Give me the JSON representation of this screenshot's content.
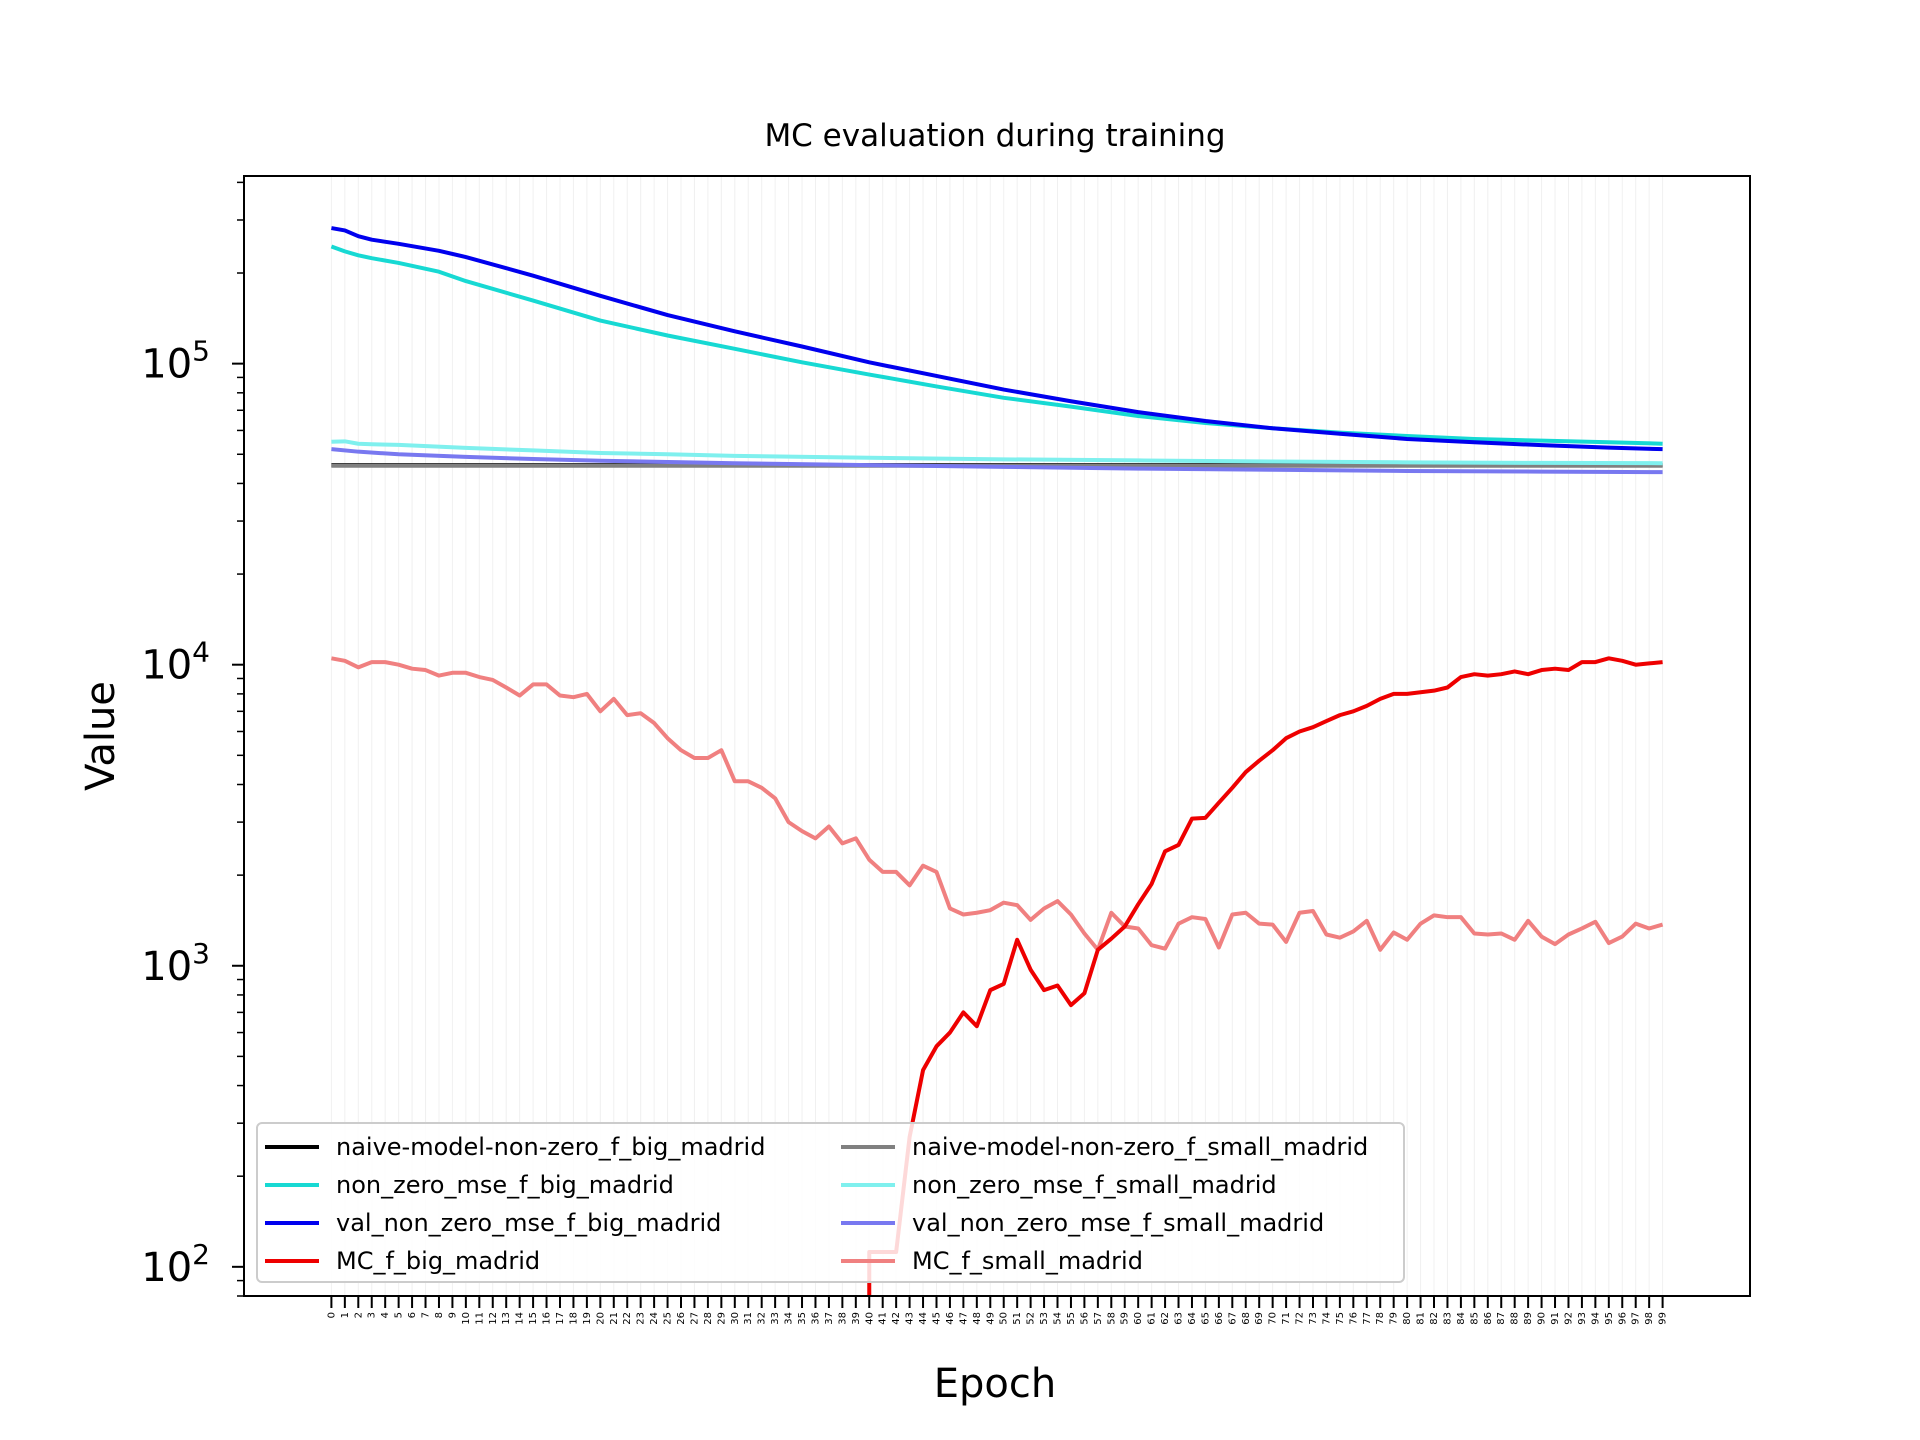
{
  "chart_data": {
    "type": "line",
    "title": "MC evaluation during training",
    "xlabel": "Epoch",
    "ylabel": "Value",
    "yscale": "log",
    "xlim": [
      -6.5,
      105.5
    ],
    "ylim": [
      80,
      420000
    ],
    "yticks": [
      {
        "value": 100,
        "base": "10",
        "exp": "2"
      },
      {
        "value": 1000,
        "base": "10",
        "exp": "3"
      },
      {
        "value": 10000,
        "base": "10",
        "exp": "4"
      },
      {
        "value": 100000,
        "base": "10",
        "exp": "5"
      }
    ],
    "x": [
      0,
      1,
      2,
      3,
      4,
      5,
      6,
      7,
      8,
      9,
      10,
      11,
      12,
      13,
      14,
      15,
      16,
      17,
      18,
      19,
      20,
      21,
      22,
      23,
      24,
      25,
      26,
      27,
      28,
      29,
      30,
      31,
      32,
      33,
      34,
      35,
      36,
      37,
      38,
      39,
      40,
      41,
      42,
      43,
      44,
      45,
      46,
      47,
      48,
      49,
      50,
      51,
      52,
      53,
      54,
      55,
      56,
      57,
      58,
      59,
      60,
      61,
      62,
      63,
      64,
      65,
      66,
      67,
      68,
      69,
      70,
      71,
      72,
      73,
      74,
      75,
      76,
      77,
      78,
      79,
      80,
      81,
      82,
      83,
      84,
      85,
      86,
      87,
      88,
      89,
      90,
      91,
      92,
      93,
      94,
      95,
      96,
      97,
      98,
      99
    ],
    "x_tick_labels": [
      "0",
      "1",
      "2",
      "3",
      "4",
      "5",
      "6",
      "7",
      "8",
      "9",
      "10",
      "11",
      "12",
      "13",
      "14",
      "15",
      "16",
      "17",
      "18",
      "19",
      "20",
      "21",
      "22",
      "23",
      "24",
      "25",
      "26",
      "27",
      "28",
      "29",
      "30",
      "31",
      "32",
      "33",
      "34",
      "35",
      "36",
      "37",
      "38",
      "39",
      "40",
      "41",
      "42",
      "43",
      "44",
      "45",
      "46",
      "47",
      "48",
      "49",
      "50",
      "51",
      "52",
      "53",
      "54",
      "55",
      "56",
      "57",
      "58",
      "59",
      "60",
      "61",
      "62",
      "63",
      "64",
      "65",
      "66",
      "67",
      "68",
      "69",
      "70",
      "71",
      "72",
      "73",
      "74",
      "75",
      "76",
      "77",
      "78",
      "79",
      "80",
      "81",
      "82",
      "83",
      "84",
      "85",
      "86",
      "87",
      "88",
      "89",
      "90",
      "91",
      "92",
      "93",
      "94",
      "95",
      "96",
      "97",
      "98",
      "99"
    ],
    "grid": "vertical",
    "legend_placement": "lower-left",
    "legend_columns": 2,
    "series": [
      {
        "name": "naive-model-non-zero_f_big_madrid",
        "color": "#000000",
        "width": 4,
        "interp": "linear",
        "points": [
          [
            0,
            46000
          ],
          [
            99,
            46000
          ]
        ]
      },
      {
        "name": "non_zero_mse_f_big_madrid",
        "color": "#17d9d3",
        "width": 4,
        "interp": "linear",
        "points": [
          [
            0,
            245000
          ],
          [
            1,
            236000
          ],
          [
            2,
            229000
          ],
          [
            3,
            224000
          ],
          [
            5,
            216000
          ],
          [
            8,
            202000
          ],
          [
            10,
            188000
          ],
          [
            15,
            162000
          ],
          [
            20,
            139000
          ],
          [
            25,
            124000
          ],
          [
            30,
            112000
          ],
          [
            35,
            101000
          ],
          [
            40,
            92000
          ],
          [
            45,
            84000
          ],
          [
            50,
            77000
          ],
          [
            55,
            72000
          ],
          [
            60,
            67000
          ],
          [
            65,
            63500
          ],
          [
            70,
            61000
          ],
          [
            75,
            59000
          ],
          [
            80,
            57500
          ],
          [
            85,
            56200
          ],
          [
            90,
            55500
          ],
          [
            95,
            54800
          ],
          [
            99,
            54200
          ]
        ]
      },
      {
        "name": "val_non_zero_mse_f_big_madrid",
        "color": "#0000ee",
        "width": 4,
        "interp": "linear",
        "points": [
          [
            0,
            282000
          ],
          [
            1,
            277000
          ],
          [
            2,
            265000
          ],
          [
            3,
            258000
          ],
          [
            5,
            250000
          ],
          [
            8,
            237000
          ],
          [
            10,
            226000
          ],
          [
            15,
            196000
          ],
          [
            20,
            168000
          ],
          [
            25,
            145000
          ],
          [
            30,
            128000
          ],
          [
            35,
            114000
          ],
          [
            40,
            101000
          ],
          [
            45,
            91000
          ],
          [
            50,
            82000
          ],
          [
            55,
            75000
          ],
          [
            60,
            69000
          ],
          [
            65,
            64500
          ],
          [
            70,
            61000
          ],
          [
            75,
            58500
          ],
          [
            80,
            56200
          ],
          [
            85,
            54800
          ],
          [
            90,
            53600
          ],
          [
            95,
            52600
          ],
          [
            99,
            52000
          ]
        ]
      },
      {
        "name": "MC_f_big_madrid",
        "color": "#ee0000",
        "width": 4,
        "interp": "linear",
        "points": [
          [
            40,
            75
          ],
          [
            40,
            112
          ],
          [
            41,
            112
          ],
          [
            42,
            112
          ],
          [
            43,
            270
          ],
          [
            44,
            450
          ],
          [
            45,
            540
          ],
          [
            46,
            600
          ],
          [
            47,
            700
          ],
          [
            48,
            630
          ],
          [
            49,
            830
          ],
          [
            50,
            870
          ],
          [
            51,
            1220
          ],
          [
            52,
            970
          ],
          [
            53,
            830
          ],
          [
            54,
            860
          ],
          [
            55,
            740
          ],
          [
            56,
            810
          ],
          [
            57,
            1130
          ],
          [
            58,
            1230
          ],
          [
            59,
            1350
          ],
          [
            60,
            1600
          ],
          [
            61,
            1870
          ],
          [
            62,
            2400
          ],
          [
            63,
            2520
          ],
          [
            64,
            3080
          ],
          [
            65,
            3100
          ],
          [
            66,
            3480
          ],
          [
            67,
            3900
          ],
          [
            68,
            4400
          ],
          [
            69,
            4800
          ],
          [
            70,
            5200
          ],
          [
            71,
            5700
          ],
          [
            72,
            6000
          ],
          [
            73,
            6200
          ],
          [
            74,
            6500
          ],
          [
            75,
            6800
          ],
          [
            76,
            7000
          ],
          [
            77,
            7300
          ],
          [
            78,
            7700
          ],
          [
            79,
            8000
          ],
          [
            80,
            8000
          ],
          [
            81,
            8100
          ],
          [
            82,
            8200
          ],
          [
            83,
            8400
          ],
          [
            84,
            9100
          ],
          [
            85,
            9300
          ],
          [
            86,
            9200
          ],
          [
            87,
            9300
          ],
          [
            88,
            9500
          ],
          [
            89,
            9300
          ],
          [
            90,
            9600
          ],
          [
            91,
            9700
          ],
          [
            92,
            9600
          ],
          [
            93,
            10200
          ],
          [
            94,
            10200
          ],
          [
            95,
            10500
          ],
          [
            96,
            10300
          ],
          [
            97,
            10000
          ],
          [
            98,
            10100
          ],
          [
            99,
            10200
          ]
        ]
      },
      {
        "name": "naive-model-non-zero_f_small_madrid",
        "color": "#808080",
        "width": 4,
        "interp": "linear",
        "points": [
          [
            0,
            45800
          ],
          [
            99,
            45800
          ]
        ]
      },
      {
        "name": "non_zero_mse_f_small_madrid",
        "color": "#7ff0ee",
        "width": 4,
        "interp": "linear",
        "points": [
          [
            0,
            55000
          ],
          [
            1,
            55200
          ],
          [
            2,
            54200
          ],
          [
            3,
            54000
          ],
          [
            5,
            53700
          ],
          [
            10,
            52500
          ],
          [
            15,
            51500
          ],
          [
            20,
            50500
          ],
          [
            25,
            50000
          ],
          [
            30,
            49400
          ],
          [
            40,
            48700
          ],
          [
            50,
            48100
          ],
          [
            60,
            47700
          ],
          [
            70,
            47300
          ],
          [
            80,
            47000
          ],
          [
            90,
            46800
          ],
          [
            99,
            46700
          ]
        ]
      },
      {
        "name": "val_non_zero_mse_f_small_madrid",
        "color": "#7878f0",
        "width": 4,
        "interp": "linear",
        "points": [
          [
            0,
            52000
          ],
          [
            2,
            51000
          ],
          [
            5,
            50000
          ],
          [
            10,
            49000
          ],
          [
            15,
            48200
          ],
          [
            20,
            47600
          ],
          [
            30,
            46700
          ],
          [
            40,
            46000
          ],
          [
            50,
            45400
          ],
          [
            60,
            44800
          ],
          [
            70,
            44400
          ],
          [
            80,
            44000
          ],
          [
            90,
            43800
          ],
          [
            99,
            43600
          ]
        ]
      },
      {
        "name": "MC_f_small_madrid",
        "color": "#f08080",
        "width": 4,
        "interp": "linear",
        "points": [
          [
            0,
            10500
          ],
          [
            1,
            10300
          ],
          [
            2,
            9800
          ],
          [
            3,
            10200
          ],
          [
            4,
            10200
          ],
          [
            5,
            10000
          ],
          [
            6,
            9700
          ],
          [
            7,
            9600
          ],
          [
            8,
            9200
          ],
          [
            9,
            9400
          ],
          [
            10,
            9400
          ],
          [
            11,
            9100
          ],
          [
            12,
            8900
          ],
          [
            13,
            8400
          ],
          [
            14,
            7900
          ],
          [
            15,
            8600
          ],
          [
            16,
            8600
          ],
          [
            17,
            7900
          ],
          [
            18,
            7800
          ],
          [
            19,
            8000
          ],
          [
            20,
            7000
          ],
          [
            21,
            7700
          ],
          [
            22,
            6800
          ],
          [
            23,
            6900
          ],
          [
            24,
            6400
          ],
          [
            25,
            5700
          ],
          [
            26,
            5200
          ],
          [
            27,
            4900
          ],
          [
            28,
            4900
          ],
          [
            29,
            5200
          ],
          [
            30,
            4100
          ],
          [
            31,
            4100
          ],
          [
            32,
            3900
          ],
          [
            33,
            3600
          ],
          [
            34,
            3000
          ],
          [
            35,
            2800
          ],
          [
            36,
            2650
          ],
          [
            37,
            2900
          ],
          [
            38,
            2550
          ],
          [
            39,
            2650
          ],
          [
            40,
            2250
          ],
          [
            41,
            2050
          ],
          [
            42,
            2050
          ],
          [
            43,
            1850
          ],
          [
            44,
            2150
          ],
          [
            45,
            2050
          ],
          [
            46,
            1550
          ],
          [
            47,
            1480
          ],
          [
            48,
            1500
          ],
          [
            49,
            1530
          ],
          [
            50,
            1620
          ],
          [
            51,
            1590
          ],
          [
            52,
            1420
          ],
          [
            53,
            1550
          ],
          [
            54,
            1640
          ],
          [
            55,
            1480
          ],
          [
            56,
            1280
          ],
          [
            57,
            1130
          ],
          [
            58,
            1500
          ],
          [
            59,
            1350
          ],
          [
            60,
            1330
          ],
          [
            61,
            1170
          ],
          [
            62,
            1140
          ],
          [
            63,
            1380
          ],
          [
            64,
            1450
          ],
          [
            65,
            1430
          ],
          [
            66,
            1150
          ],
          [
            67,
            1480
          ],
          [
            68,
            1500
          ],
          [
            69,
            1380
          ],
          [
            70,
            1370
          ],
          [
            71,
            1200
          ],
          [
            72,
            1500
          ],
          [
            73,
            1520
          ],
          [
            74,
            1270
          ],
          [
            75,
            1240
          ],
          [
            76,
            1300
          ],
          [
            77,
            1410
          ],
          [
            78,
            1130
          ],
          [
            79,
            1290
          ],
          [
            80,
            1220
          ],
          [
            81,
            1380
          ],
          [
            82,
            1470
          ],
          [
            83,
            1450
          ],
          [
            84,
            1450
          ],
          [
            85,
            1280
          ],
          [
            86,
            1270
          ],
          [
            87,
            1280
          ],
          [
            88,
            1220
          ],
          [
            89,
            1410
          ],
          [
            90,
            1250
          ],
          [
            91,
            1180
          ],
          [
            92,
            1270
          ],
          [
            93,
            1330
          ],
          [
            94,
            1400
          ],
          [
            95,
            1190
          ],
          [
            96,
            1250
          ],
          [
            97,
            1380
          ],
          [
            98,
            1330
          ],
          [
            99,
            1370
          ]
        ]
      }
    ]
  }
}
